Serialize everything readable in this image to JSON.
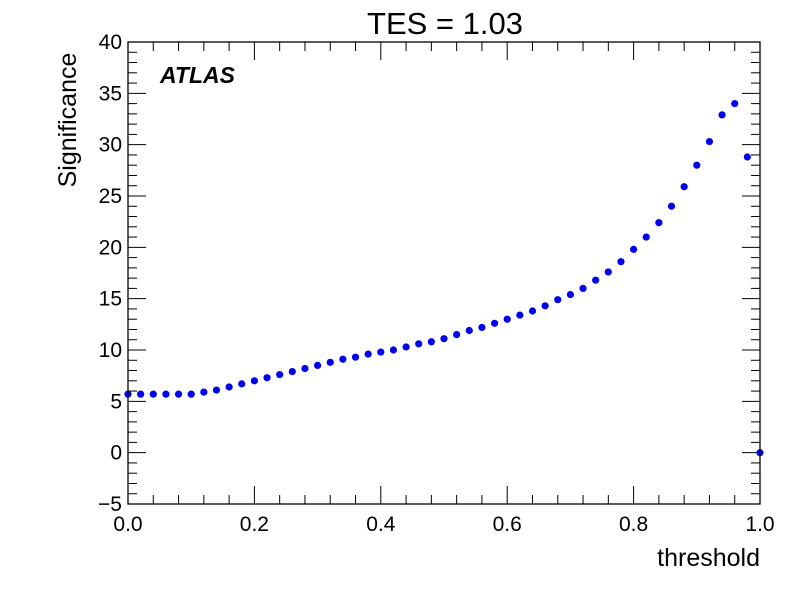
{
  "chart_data": {
    "type": "scatter",
    "title": "TES = 1.03",
    "xlabel": "threshold",
    "ylabel": "Significance",
    "annotation": "ATLAS",
    "xlim": [
      0.0,
      1.0
    ],
    "ylim": [
      -5,
      40
    ],
    "xticks": [
      "0.0",
      "0.2",
      "0.4",
      "0.6",
      "0.8",
      "1.0"
    ],
    "yticks": [
      "−5",
      "0",
      "5",
      "10",
      "15",
      "20",
      "25",
      "30",
      "35",
      "40"
    ],
    "grid": false,
    "marker_color": "#0000ee",
    "series": [
      {
        "x": [
          0.0,
          0.02,
          0.04,
          0.06,
          0.08,
          0.1,
          0.12,
          0.14,
          0.16,
          0.18,
          0.2,
          0.22,
          0.24,
          0.26,
          0.28,
          0.3,
          0.32,
          0.34,
          0.36,
          0.38,
          0.4,
          0.42,
          0.44,
          0.46,
          0.48,
          0.5,
          0.52,
          0.54,
          0.56,
          0.58,
          0.6,
          0.62,
          0.64,
          0.66,
          0.68,
          0.7,
          0.72,
          0.74,
          0.76,
          0.78,
          0.8,
          0.82,
          0.84,
          0.86,
          0.88,
          0.9,
          0.92,
          0.94,
          0.96,
          0.98,
          1.0
        ],
        "y": [
          5.7,
          5.7,
          5.7,
          5.7,
          5.7,
          5.7,
          5.9,
          6.1,
          6.4,
          6.7,
          7.0,
          7.3,
          7.6,
          7.9,
          8.2,
          8.5,
          8.8,
          9.1,
          9.3,
          9.6,
          9.8,
          10.0,
          10.3,
          10.6,
          10.8,
          11.1,
          11.5,
          11.9,
          12.2,
          12.6,
          13.0,
          13.4,
          13.8,
          14.3,
          14.9,
          15.4,
          16.0,
          16.8,
          17.6,
          18.6,
          19.8,
          21.0,
          22.4,
          24.0,
          25.9,
          28.0,
          30.3,
          32.9,
          34.0,
          28.8,
          0.0
        ]
      }
    ]
  }
}
